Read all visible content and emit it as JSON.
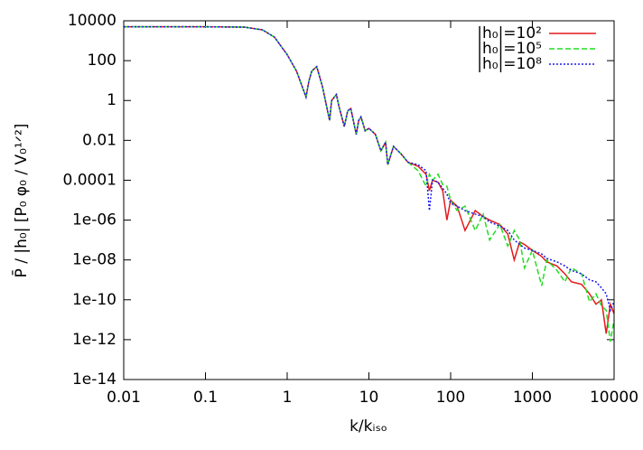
{
  "chart_data": {
    "type": "line",
    "xlabel": "k/kᵢₛₒ",
    "ylabel": "P̄ / |h₀|  [P₀ φ₀ / V₀¹ᐟ²]",
    "log_x": true,
    "log_y": true,
    "legend": "top-right",
    "xlim": [
      0.01,
      10000
    ],
    "xticks": [
      0.01,
      0.1,
      1,
      10,
      100,
      1000,
      10000
    ],
    "ylim": [
      1e-14,
      10000
    ],
    "yticks": [
      {
        "value": 1e-14,
        "label": "1e-14"
      },
      {
        "value": 1e-12,
        "label": "1e-12"
      },
      {
        "value": 1e-10,
        "label": "1e-10"
      },
      {
        "value": 1e-08,
        "label": "1e-08"
      },
      {
        "value": 1e-06,
        "label": "1e-06"
      },
      0.0001,
      0.01,
      1,
      100,
      10000
    ],
    "x": [
      0.01,
      0.1,
      0.3,
      0.5,
      0.7,
      1,
      1.3,
      1.7,
      1.85,
      2,
      2.3,
      2.7,
      3.3,
      3.5,
      4,
      4.3,
      5,
      5.5,
      6,
      7,
      7.5,
      8,
      9,
      10,
      12,
      14,
      16,
      17,
      20,
      25,
      30,
      40,
      50,
      55,
      60,
      70,
      80,
      90,
      100,
      120,
      150,
      200,
      250,
      300,
      400,
      500,
      600,
      700,
      800,
      1000,
      1300,
      1500,
      2000,
      2500,
      3000,
      4000,
      5000,
      6000,
      7000,
      8000,
      9000,
      10000
    ],
    "series": [
      {
        "name": "|h₀|=10²",
        "color": "#e41a1c",
        "dash": "",
        "values": [
          5000,
          5000,
          4800,
          3500,
          1500,
          200,
          30,
          1.5,
          10,
          30,
          50,
          5,
          0.1,
          1,
          2,
          0.5,
          0.05,
          0.3,
          0.4,
          0.02,
          0.1,
          0.15,
          0.03,
          0.04,
          0.02,
          0.003,
          0.008,
          0.0006,
          0.005,
          0.002,
          0.0008,
          0.0005,
          0.0002,
          3e-05,
          0.0001,
          8e-05,
          3e-05,
          1e-06,
          1e-05,
          5e-06,
          3e-07,
          3e-06,
          1.5e-06,
          1e-06,
          6e-07,
          2e-07,
          1e-08,
          8e-08,
          6e-08,
          3e-08,
          1.5e-08,
          8e-09,
          5e-09,
          2e-09,
          8e-10,
          6e-10,
          2e-10,
          6e-11,
          1e-10,
          2e-12,
          6e-11,
          2e-11
        ]
      },
      {
        "name": "|h₀|=10⁵",
        "color": "#22dd22",
        "dash": "6,3",
        "values": [
          5000,
          5000,
          4800,
          3500,
          1500,
          200,
          30,
          1.5,
          10,
          30,
          50,
          5,
          0.1,
          1,
          2,
          0.5,
          0.05,
          0.3,
          0.4,
          0.02,
          0.1,
          0.15,
          0.03,
          0.04,
          0.02,
          0.003,
          0.008,
          0.0006,
          0.005,
          0.002,
          0.0008,
          0.0003,
          5e-05,
          0.0002,
          0.0001,
          0.0002,
          6e-05,
          5e-05,
          1e-05,
          3e-06,
          5e-06,
          3e-07,
          2e-06,
          1e-07,
          6e-07,
          5e-08,
          3e-07,
          1e-07,
          4e-09,
          3e-08,
          5e-10,
          1e-08,
          3e-09,
          8e-10,
          4e-09,
          2e-09,
          8e-11,
          2e-10,
          5e-11,
          3e-11,
          8e-13,
          1e-11
        ]
      },
      {
        "name": "|h₀|=10⁸",
        "color": "#1a1aee",
        "dash": "2,2",
        "values": [
          5000,
          5000,
          4800,
          3500,
          1500,
          200,
          30,
          1.5,
          10,
          30,
          50,
          5,
          0.1,
          1,
          2,
          0.5,
          0.05,
          0.3,
          0.4,
          0.02,
          0.1,
          0.15,
          0.03,
          0.04,
          0.02,
          0.003,
          0.008,
          0.0006,
          0.005,
          0.002,
          0.0008,
          0.0006,
          0.0003,
          3e-06,
          0.0001,
          8e-05,
          4e-05,
          2e-05,
          7e-06,
          5e-06,
          3e-06,
          2e-06,
          1.5e-06,
          8e-07,
          5e-07,
          3e-07,
          1e-07,
          6e-08,
          4e-08,
          3e-08,
          2e-08,
          1.2e-08,
          8e-09,
          5e-09,
          3e-09,
          2e-09,
          1e-09,
          8e-10,
          4e-10,
          2e-10,
          3e-11,
          8e-11
        ]
      }
    ]
  }
}
